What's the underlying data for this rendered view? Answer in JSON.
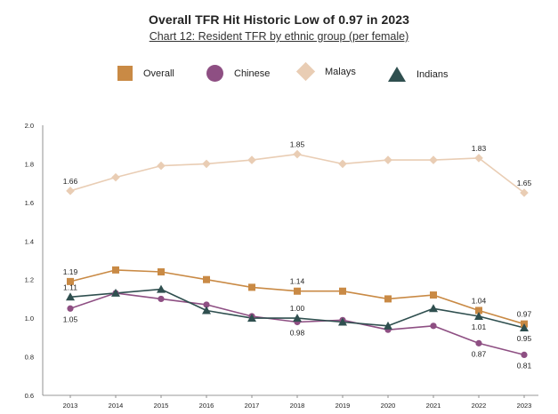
{
  "header": {
    "title": "Overall TFR Hit Historic Low of 0.97 in 2023",
    "subtitle": "Chart 12: Resident TFR by ethnic group (per female)"
  },
  "legend": {
    "items": [
      {
        "label": "Overall",
        "shape": "square",
        "color": "#c98a45"
      },
      {
        "label": "Chinese",
        "shape": "circle",
        "color": "#8e4f83"
      },
      {
        "label": "Malays",
        "shape": "diamond",
        "color": "#e9cdb4"
      },
      {
        "label": "Indians",
        "shape": "triangle",
        "color": "#2f4f4f"
      }
    ]
  },
  "chart_data": {
    "type": "line",
    "title": "Overall TFR Hit Historic Low of 0.97 in 2023",
    "subtitle": "Chart 12: Resident TFR by ethnic group (per female)",
    "xlabel": "",
    "ylabel": "",
    "x": [
      "2013",
      "2014",
      "2015",
      "2016",
      "2017",
      "2018",
      "2019",
      "2020",
      "2021",
      "2022",
      "2023"
    ],
    "ylim": [
      0.6,
      2.0
    ],
    "yticks": [
      "0.6",
      "0.8",
      "1.0",
      "1.2",
      "1.4",
      "1.6",
      "1.8",
      "2.0"
    ],
    "grid": false,
    "legend_position": "top",
    "series": [
      {
        "name": "Overall",
        "color": "#c98a45",
        "marker": "square",
        "values": [
          1.19,
          1.25,
          1.24,
          1.2,
          1.16,
          1.14,
          1.14,
          1.1,
          1.12,
          1.04,
          0.97
        ]
      },
      {
        "name": "Chinese",
        "color": "#8e4f83",
        "marker": "circle",
        "values": [
          1.05,
          1.13,
          1.1,
          1.07,
          1.01,
          0.98,
          0.99,
          0.94,
          0.96,
          0.87,
          0.81
        ]
      },
      {
        "name": "Malays",
        "color": "#e9cdb4",
        "marker": "diamond",
        "values": [
          1.66,
          1.73,
          1.79,
          1.8,
          1.82,
          1.85,
          1.8,
          1.82,
          1.82,
          1.83,
          1.65
        ]
      },
      {
        "name": "Indians",
        "color": "#2f4f4f",
        "marker": "triangle",
        "values": [
          1.11,
          1.13,
          1.15,
          1.04,
          1.0,
          1.0,
          0.98,
          0.96,
          1.05,
          1.01,
          0.95
        ]
      }
    ],
    "data_labels": [
      {
        "series": "Malays",
        "x": "2013",
        "text": "1.66",
        "pos": "above"
      },
      {
        "series": "Malays",
        "x": "2018",
        "text": "1.85",
        "pos": "above"
      },
      {
        "series": "Malays",
        "x": "2022",
        "text": "1.83",
        "pos": "above"
      },
      {
        "series": "Malays",
        "x": "2023",
        "text": "1.65",
        "pos": "above"
      },
      {
        "series": "Overall",
        "x": "2013",
        "text": "1.19",
        "pos": "above"
      },
      {
        "series": "Overall",
        "x": "2018",
        "text": "1.14",
        "pos": "above"
      },
      {
        "series": "Overall",
        "x": "2022",
        "text": "1.04",
        "pos": "above"
      },
      {
        "series": "Overall",
        "x": "2023",
        "text": "0.97",
        "pos": "above"
      },
      {
        "series": "Indians",
        "x": "2013",
        "text": "1.11",
        "pos": "above"
      },
      {
        "series": "Indians",
        "x": "2018",
        "text": "1.00",
        "pos": "above"
      },
      {
        "series": "Indians",
        "x": "2022",
        "text": "1.01",
        "pos": "below"
      },
      {
        "series": "Indians",
        "x": "2023",
        "text": "0.95",
        "pos": "below"
      },
      {
        "series": "Chinese",
        "x": "2013",
        "text": "1.05",
        "pos": "below"
      },
      {
        "series": "Chinese",
        "x": "2018",
        "text": "0.98",
        "pos": "below"
      },
      {
        "series": "Chinese",
        "x": "2022",
        "text": "0.87",
        "pos": "below"
      },
      {
        "series": "Chinese",
        "x": "2023",
        "text": "0.81",
        "pos": "below"
      }
    ]
  }
}
